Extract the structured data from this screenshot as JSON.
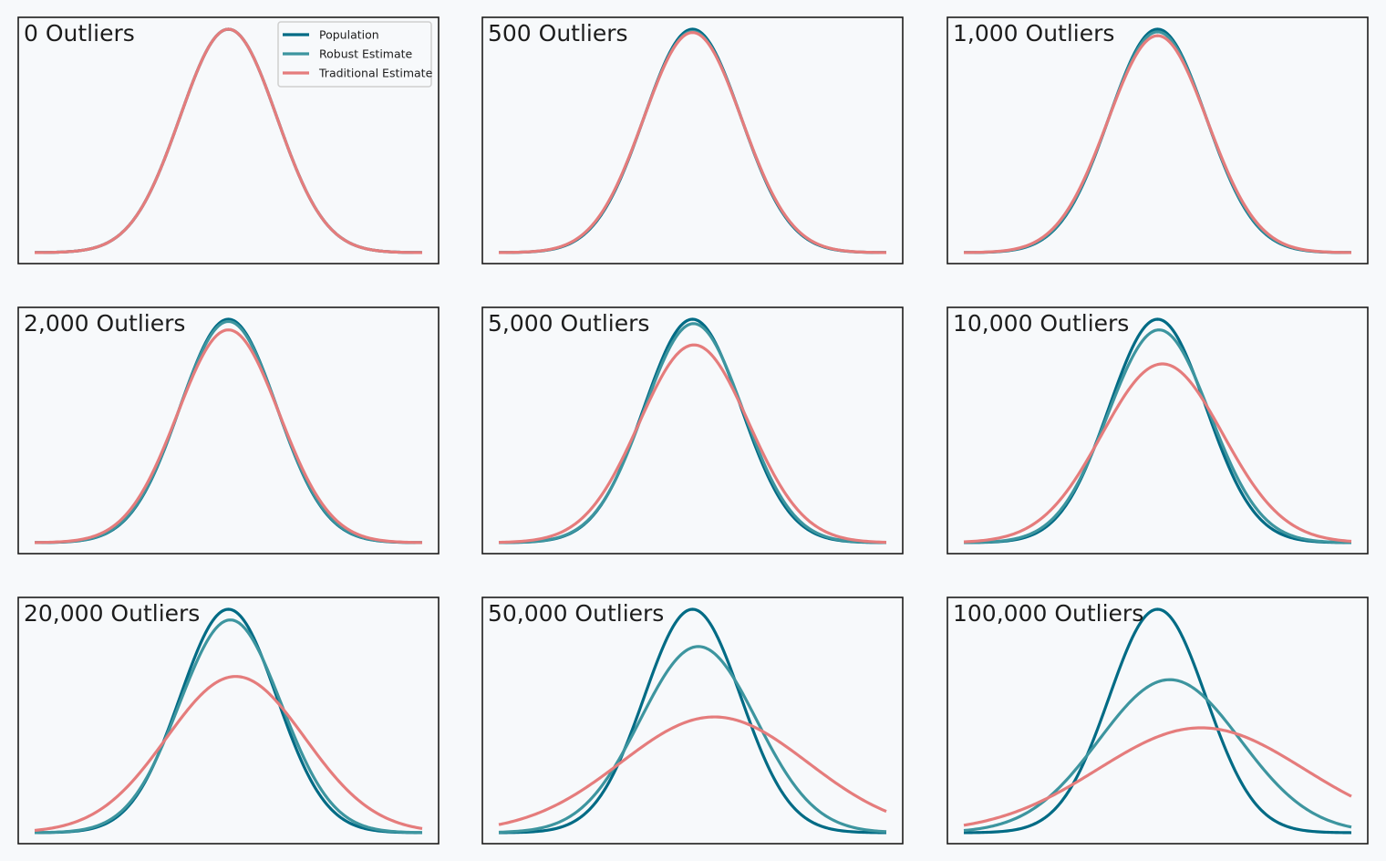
{
  "chart_data": {
    "type": "line",
    "legend": {
      "placement": "top-right",
      "location_panel": 0,
      "entries": [
        {
          "label": "Population",
          "series": "population"
        },
        {
          "label": "Robust Estimate",
          "series": "robust"
        },
        {
          "label": "Traditional Estimate",
          "series": "traditional"
        }
      ]
    },
    "colors": {
      "population": "#006b85",
      "robust": "#3d959f",
      "traditional": "#e57c7c",
      "frame": "#1c1c1c",
      "background": "#f7f9fb"
    },
    "axes": {
      "x_range": [
        -4,
        4
      ],
      "ticks": "none",
      "grid": false
    },
    "panels": [
      {
        "title": "0 Outliers",
        "series": [
          {
            "key": "population",
            "mean": 0,
            "sd": 1
          },
          {
            "key": "robust",
            "mean": 0,
            "sd": 1
          },
          {
            "key": "traditional",
            "mean": 0,
            "sd": 1
          }
        ]
      },
      {
        "title": "500 Outliers",
        "series": [
          {
            "key": "population",
            "mean": 0,
            "sd": 1
          },
          {
            "key": "robust",
            "mean": 0,
            "sd": 1.01
          },
          {
            "key": "traditional",
            "mean": 0,
            "sd": 1.015
          }
        ]
      },
      {
        "title": "1,000 Outliers",
        "series": [
          {
            "key": "population",
            "mean": 0,
            "sd": 1
          },
          {
            "key": "robust",
            "mean": 0,
            "sd": 1.012
          },
          {
            "key": "traditional",
            "mean": 0,
            "sd": 1.03
          }
        ]
      },
      {
        "title": "2,000 Outliers",
        "series": [
          {
            "key": "population",
            "mean": 0,
            "sd": 1
          },
          {
            "key": "robust",
            "mean": 0,
            "sd": 1.01
          },
          {
            "key": "traditional",
            "mean": 0,
            "sd": 1.05
          }
        ]
      },
      {
        "title": "5,000 Outliers",
        "series": [
          {
            "key": "population",
            "mean": 0,
            "sd": 1
          },
          {
            "key": "robust",
            "mean": 0.02,
            "sd": 1.02
          },
          {
            "key": "traditional",
            "mean": 0.03,
            "sd": 1.13
          }
        ]
      },
      {
        "title": "10,000 Outliers",
        "series": [
          {
            "key": "population",
            "mean": 0,
            "sd": 1
          },
          {
            "key": "robust",
            "mean": 0.03,
            "sd": 1.05
          },
          {
            "key": "traditional",
            "mean": 0.1,
            "sd": 1.25
          }
        ]
      },
      {
        "title": "20,000 Outliers",
        "series": [
          {
            "key": "population",
            "mean": 0,
            "sd": 1
          },
          {
            "key": "robust",
            "mean": 0.04,
            "sd": 1.05
          },
          {
            "key": "traditional",
            "mean": 0.15,
            "sd": 1.43
          }
        ]
      },
      {
        "title": "50,000 Outliers",
        "series": [
          {
            "key": "population",
            "mean": 0,
            "sd": 1
          },
          {
            "key": "robust",
            "mean": 0.12,
            "sd": 1.2
          },
          {
            "key": "traditional",
            "mean": 0.45,
            "sd": 1.93
          }
        ]
      },
      {
        "title": "100,000 Outliers",
        "series": [
          {
            "key": "population",
            "mean": 0,
            "sd": 1
          },
          {
            "key": "robust",
            "mean": 0.25,
            "sd": 1.46
          },
          {
            "key": "traditional",
            "mean": 0.9,
            "sd": 2.13
          }
        ]
      }
    ]
  }
}
